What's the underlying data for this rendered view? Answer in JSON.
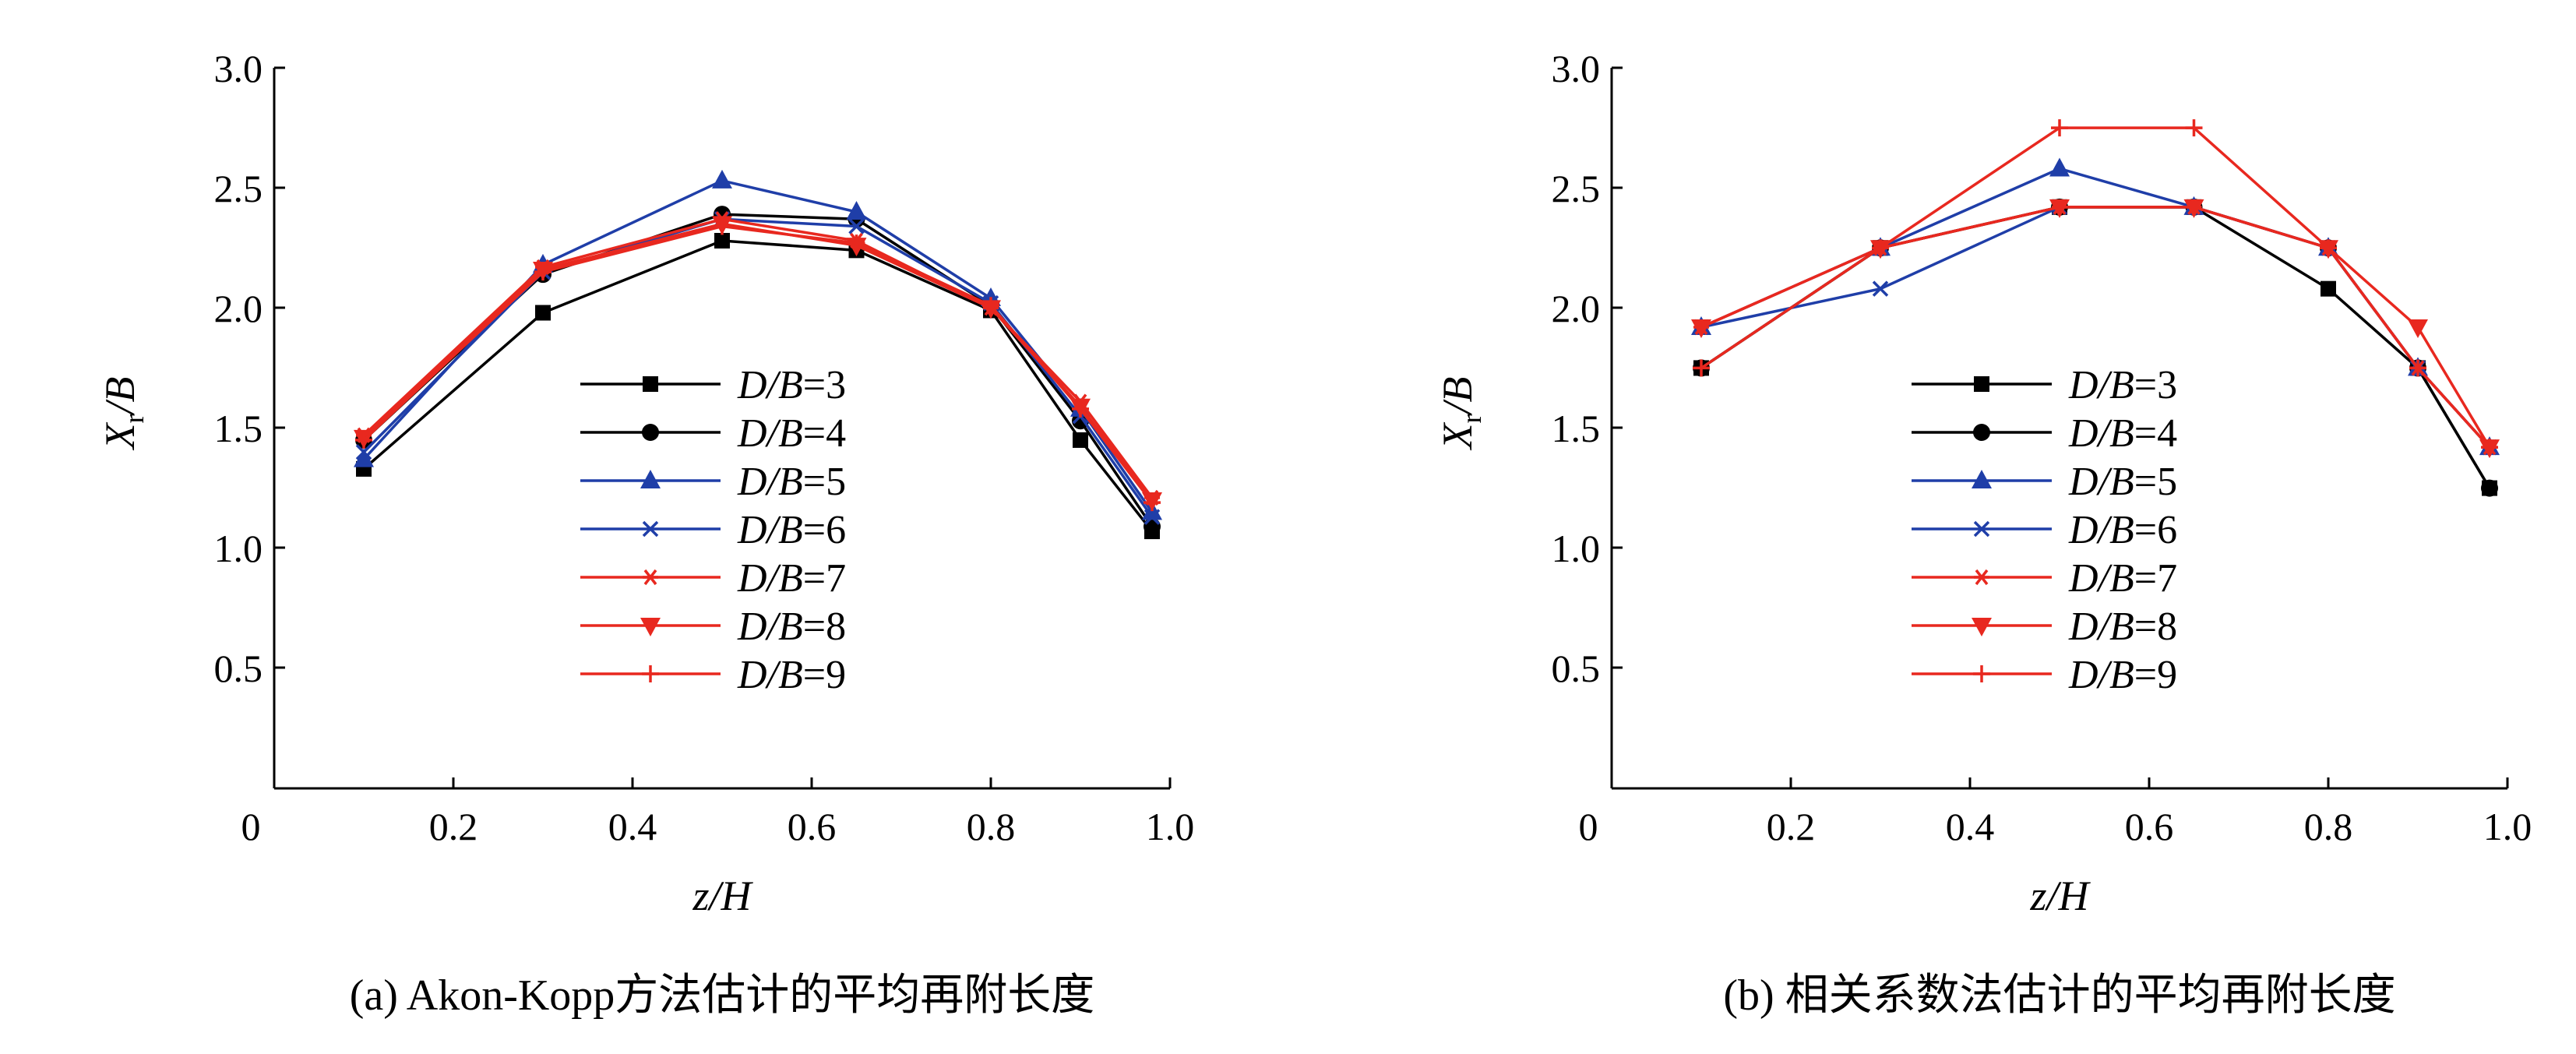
{
  "chart_data": [
    {
      "type": "line",
      "title": "",
      "caption": "(a) Akon-Kopp方法估计的平均再附长度",
      "xlabel": "z/H",
      "ylabel": "Xr/B",
      "ylabel_parts": {
        "main": "X",
        "sub": "r",
        "rest": "/B"
      },
      "xlim": [
        0,
        1.0
      ],
      "ylim": [
        0,
        3.0
      ],
      "xticks": [
        "0",
        "0.2",
        "0.4",
        "0.6",
        "0.8",
        "1.0"
      ],
      "yticks": [
        "0.5",
        "1.0",
        "1.5",
        "2.0",
        "2.5",
        "3.0"
      ],
      "x": [
        0.1,
        0.3,
        0.5,
        0.65,
        0.8,
        0.9,
        0.98
      ],
      "grid": false,
      "legend_position": "center",
      "series": [
        {
          "name": "D/B=3",
          "color": "#000000",
          "marker": "square",
          "values": [
            1.33,
            1.98,
            2.28,
            2.24,
            1.99,
            1.45,
            1.07
          ]
        },
        {
          "name": "D/B=4",
          "color": "#000000",
          "marker": "circle",
          "values": [
            1.45,
            2.14,
            2.39,
            2.37,
            2.01,
            1.53,
            1.09
          ]
        },
        {
          "name": "D/B=5",
          "color": "#1f3ea8",
          "marker": "triangle-up",
          "values": [
            1.37,
            2.18,
            2.53,
            2.4,
            2.04,
            1.58,
            1.15
          ]
        },
        {
          "name": "D/B=6",
          "color": "#1f3ea8",
          "marker": "x",
          "values": [
            1.4,
            2.15,
            2.37,
            2.34,
            2.02,
            1.55,
            1.13
          ]
        },
        {
          "name": "D/B=7",
          "color": "#e8281f",
          "marker": "asterisk",
          "values": [
            1.47,
            2.17,
            2.37,
            2.28,
            2.0,
            1.61,
            1.21
          ]
        },
        {
          "name": "D/B=8",
          "color": "#e8281f",
          "marker": "triangle-down",
          "values": [
            1.46,
            2.16,
            2.35,
            2.26,
            2.0,
            1.59,
            1.2
          ]
        },
        {
          "name": "D/B=9",
          "color": "#e8281f",
          "marker": "plus",
          "values": [
            1.45,
            2.15,
            2.34,
            2.27,
            2.01,
            1.58,
            1.19
          ]
        }
      ]
    },
    {
      "type": "line",
      "title": "",
      "caption": "(b) 相关系数法估计的平均再附长度",
      "xlabel": "z/H",
      "ylabel": "Xr/B",
      "ylabel_parts": {
        "main": "X",
        "sub": "r",
        "rest": "/B"
      },
      "xlim": [
        0,
        1.0
      ],
      "ylim": [
        0,
        3.0
      ],
      "xticks": [
        "0",
        "0.2",
        "0.4",
        "0.6",
        "0.8",
        "1.0"
      ],
      "yticks": [
        "0.5",
        "1.0",
        "1.5",
        "2.0",
        "2.5",
        "3.0"
      ],
      "x": [
        0.1,
        0.3,
        0.5,
        0.65,
        0.8,
        0.9,
        0.98
      ],
      "grid": false,
      "legend_position": "center",
      "series": [
        {
          "name": "D/B=3",
          "color": "#000000",
          "marker": "square",
          "values": [
            1.75,
            2.25,
            2.42,
            2.42,
            2.08,
            1.75,
            1.25
          ]
        },
        {
          "name": "D/B=4",
          "color": "#000000",
          "marker": "circle",
          "values": [
            1.75,
            2.25,
            2.42,
            2.42,
            2.25,
            1.75,
            1.25
          ]
        },
        {
          "name": "D/B=5",
          "color": "#1f3ea8",
          "marker": "triangle-up",
          "values": [
            1.92,
            2.25,
            2.58,
            2.42,
            2.25,
            1.75,
            1.42
          ]
        },
        {
          "name": "D/B=6",
          "color": "#1f3ea8",
          "marker": "x",
          "values": [
            1.92,
            2.08,
            2.42,
            2.42,
            2.25,
            1.75,
            1.42
          ]
        },
        {
          "name": "D/B=7",
          "color": "#e8281f",
          "marker": "asterisk",
          "values": [
            1.92,
            2.25,
            2.42,
            2.42,
            2.25,
            1.75,
            1.42
          ]
        },
        {
          "name": "D/B=8",
          "color": "#e8281f",
          "marker": "triangle-down",
          "values": [
            1.92,
            2.25,
            2.42,
            2.42,
            2.25,
            1.92,
            1.42
          ]
        },
        {
          "name": "D/B=9",
          "color": "#e8281f",
          "marker": "plus",
          "values": [
            1.75,
            2.25,
            2.75,
            2.75,
            2.25,
            1.75,
            1.42
          ]
        }
      ]
    }
  ]
}
